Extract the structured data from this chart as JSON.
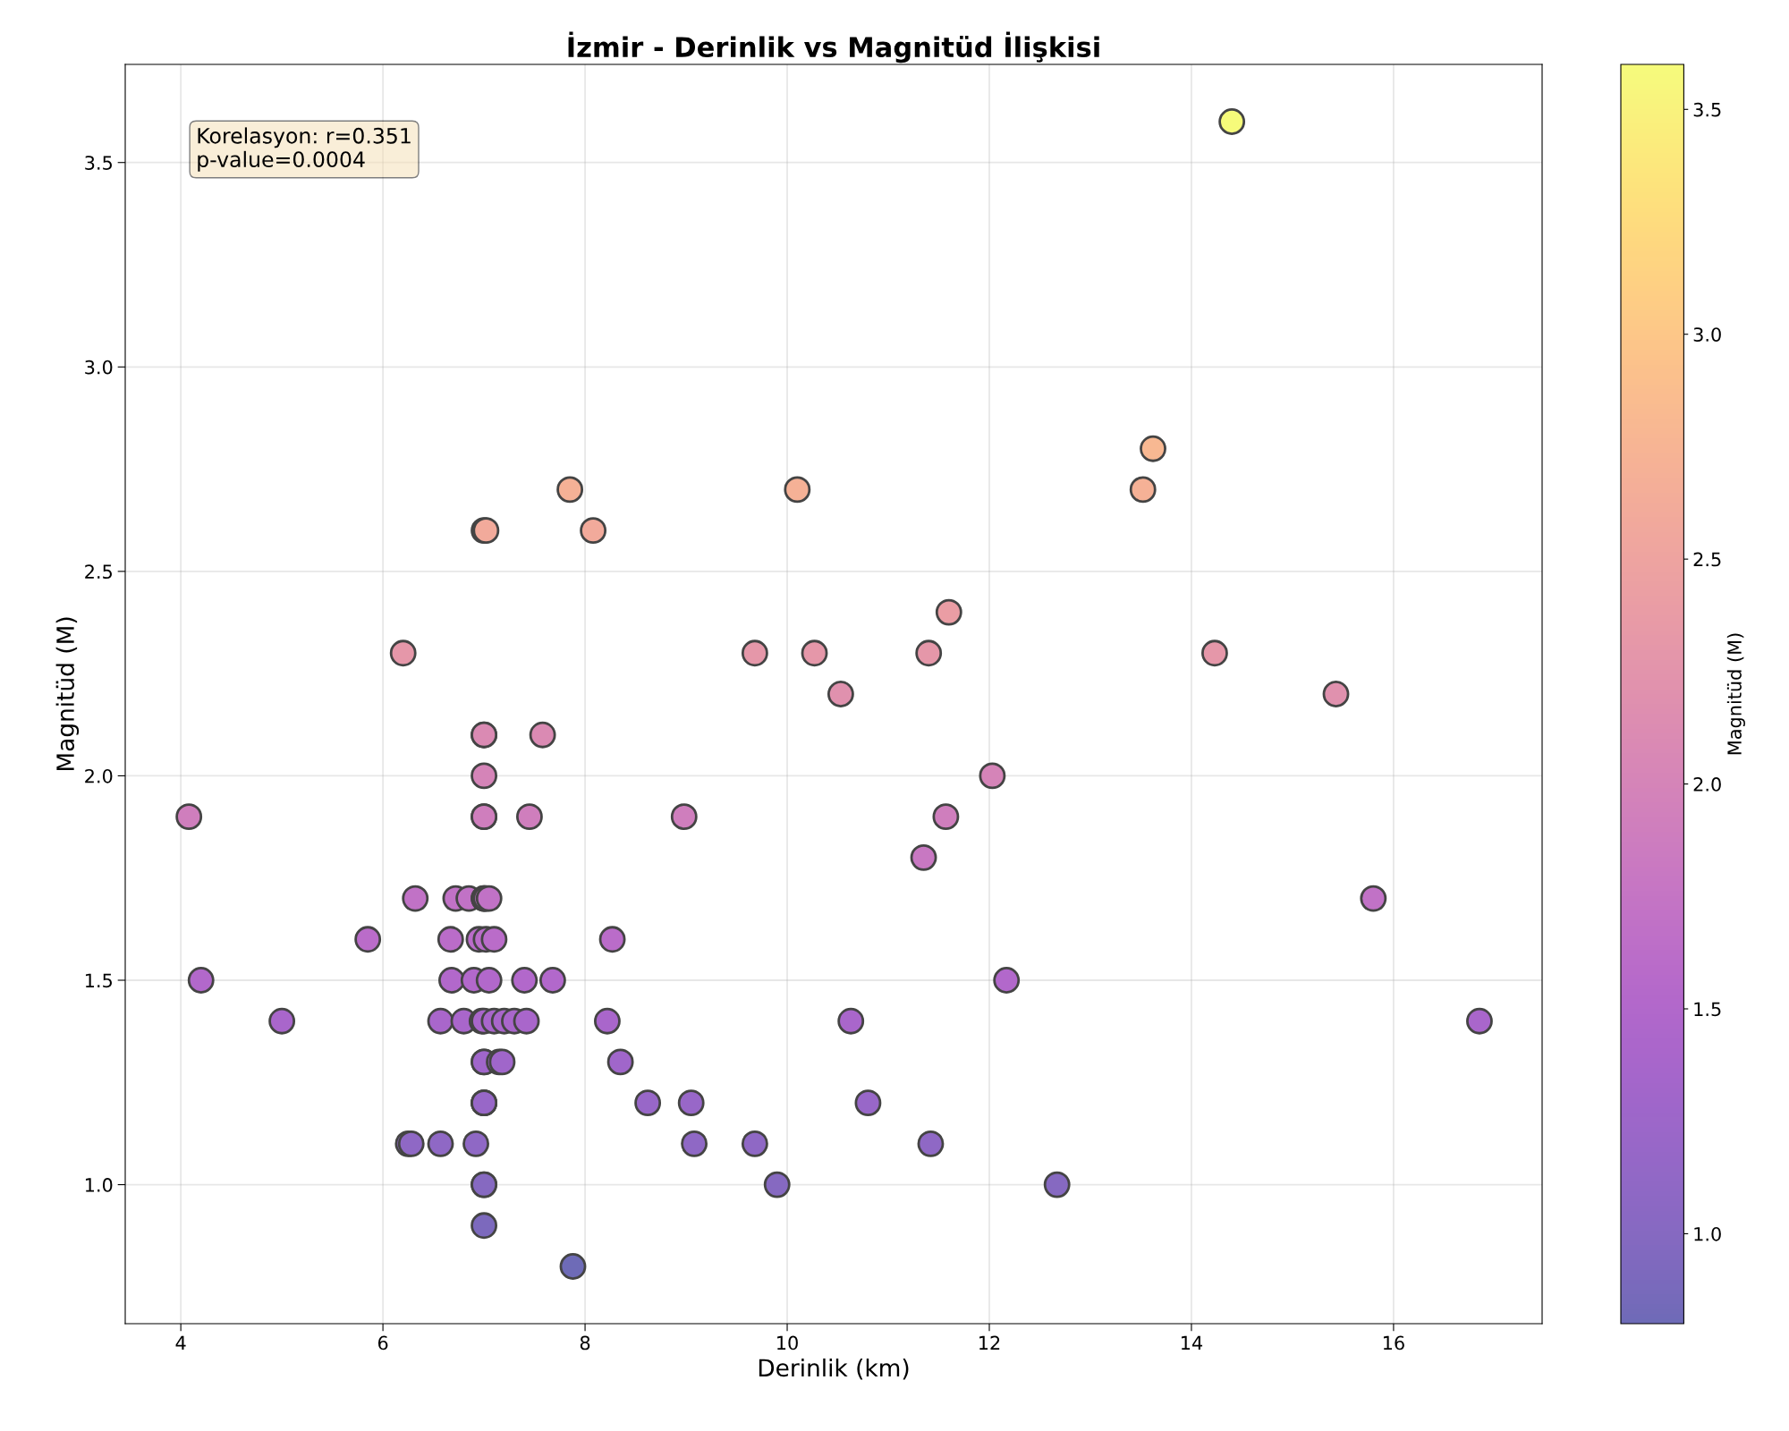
{
  "chart_data": {
    "type": "scatter",
    "title": "İzmir - Derinlik vs Magnitüd İlişkisi",
    "xlabel": "Derinlik (km)",
    "ylabel": "Magnitüd (M)",
    "clabel": "Magnitüd (M)",
    "annotations": [
      "Korelasyon: r=0.351\np-value=0.0004"
    ],
    "x": [
      4.08,
      4.2,
      5.0,
      5.85,
      6.2,
      6.25,
      6.28,
      6.32,
      6.57,
      6.57,
      6.67,
      6.68,
      6.72,
      6.8,
      6.85,
      6.9,
      6.92,
      6.95,
      6.98,
      7.0,
      7.02,
      7.0,
      7.0,
      7.0,
      7.0,
      7.0,
      7.0,
      7.0,
      7.02,
      7.02,
      7.0,
      7.0,
      7.0,
      7.0,
      7.0,
      7.0,
      7.0,
      7.0,
      7.0,
      7.05,
      7.1,
      7.05,
      7.1,
      7.15,
      7.18,
      7.2,
      7.3,
      7.4,
      7.42,
      7.45,
      7.58,
      7.68,
      7.85,
      7.88,
      8.08,
      8.22,
      8.27,
      8.35,
      8.62,
      8.98,
      9.05,
      9.08,
      9.68,
      9.68,
      9.9,
      10.1,
      10.27,
      10.53,
      10.63,
      10.8,
      11.35,
      11.4,
      11.42,
      11.57,
      11.6,
      12.03,
      12.17,
      12.67,
      13.52,
      13.62,
      14.23,
      14.4,
      15.43,
      15.8,
      16.85
    ],
    "values": [
      1.9,
      1.5,
      1.4,
      1.6,
      2.3,
      1.1,
      1.1,
      1.7,
      1.1,
      1.4,
      1.6,
      1.5,
      1.7,
      1.4,
      1.7,
      1.5,
      1.1,
      1.6,
      1.4,
      2.6,
      2.6,
      2.1,
      2.1,
      2.0,
      1.9,
      1.9,
      1.7,
      1.7,
      1.7,
      1.6,
      1.4,
      1.3,
      1.3,
      1.2,
      1.2,
      1.2,
      1.0,
      1.0,
      0.9,
      1.7,
      1.6,
      1.5,
      1.4,
      1.3,
      1.3,
      1.4,
      1.4,
      1.5,
      1.4,
      1.9,
      2.1,
      1.5,
      2.7,
      0.8,
      2.6,
      1.4,
      1.6,
      1.3,
      1.2,
      1.9,
      1.2,
      1.1,
      1.1,
      2.3,
      1.0,
      2.7,
      2.3,
      2.2,
      1.4,
      1.2,
      1.8,
      2.3,
      1.1,
      1.9,
      2.4,
      2.0,
      1.5,
      1.0,
      2.7,
      2.8,
      2.3,
      3.6,
      2.2,
      1.7,
      1.4
    ],
    "cvalues": [
      1.9,
      1.5,
      1.4,
      1.6,
      2.3,
      1.1,
      1.1,
      1.7,
      1.1,
      1.4,
      1.6,
      1.5,
      1.7,
      1.4,
      1.7,
      1.5,
      1.1,
      1.6,
      1.4,
      2.6,
      2.6,
      2.1,
      2.1,
      2.0,
      1.9,
      1.9,
      1.7,
      1.7,
      1.7,
      1.6,
      1.4,
      1.3,
      1.3,
      1.2,
      1.2,
      1.2,
      1.0,
      1.0,
      0.9,
      1.7,
      1.6,
      1.5,
      1.4,
      1.3,
      1.3,
      1.4,
      1.4,
      1.5,
      1.4,
      1.9,
      2.1,
      1.5,
      2.7,
      0.8,
      2.6,
      1.4,
      1.6,
      1.3,
      1.2,
      1.9,
      1.2,
      1.1,
      1.1,
      2.3,
      1.0,
      2.7,
      2.3,
      2.2,
      1.4,
      1.2,
      1.8,
      2.3,
      1.1,
      1.9,
      2.4,
      2.0,
      1.5,
      1.0,
      2.7,
      2.8,
      2.3,
      3.6,
      2.2,
      1.7,
      1.4
    ],
    "xlim": [
      3.45,
      17.47
    ],
    "ylim": [
      0.66,
      3.74
    ],
    "xticks": [
      4,
      6,
      8,
      10,
      12,
      14,
      16
    ],
    "yticks": [
      {
        "value": 1,
        "label": "1.0"
      },
      1.5,
      {
        "value": 2,
        "label": "2.0"
      },
      2.5,
      {
        "value": 3,
        "label": "3.0"
      },
      3.5
    ],
    "clim": [
      0.8,
      3.6
    ],
    "cticks": [
      {
        "value": 1,
        "label": "1.0"
      },
      1.5,
      {
        "value": 2,
        "label": "2.0"
      },
      2.5,
      {
        "value": 3,
        "label": "3.0"
      },
      3.5
    ],
    "marker": "circle",
    "grid": true,
    "legend": false
  }
}
